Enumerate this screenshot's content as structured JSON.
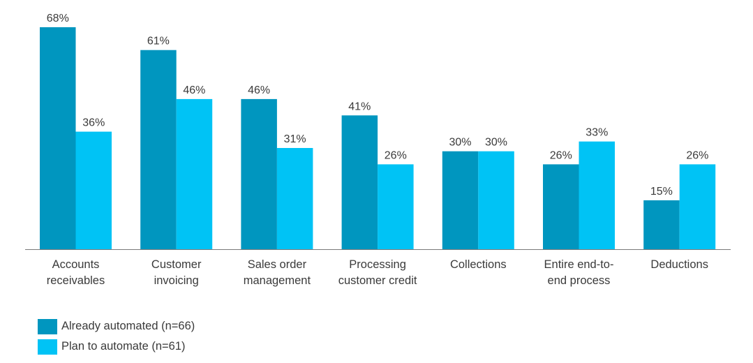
{
  "chart_data": {
    "type": "bar",
    "title": "",
    "xlabel": "",
    "ylabel": "",
    "ylim": [
      0,
      68
    ],
    "grid": false,
    "categories": [
      [
        "Accounts",
        "receivables"
      ],
      [
        "Customer",
        "invoicing"
      ],
      [
        "Sales order",
        "management"
      ],
      [
        "Processing",
        "customer credit"
      ],
      [
        "Collections"
      ],
      [
        "Entire end-to-",
        "end process"
      ],
      [
        "Deductions"
      ]
    ],
    "series": [
      {
        "name": "Already automated (n=66)",
        "color": "#0096bf",
        "values": [
          68,
          61,
          46,
          41,
          30,
          26,
          15
        ],
        "labels": [
          "68%",
          "61%",
          "46%",
          "41%",
          "30%",
          "26%",
          "15%"
        ]
      },
      {
        "name": "Plan to automate (n=61)",
        "color": "#00c3f5",
        "values": [
          36,
          46,
          31,
          26,
          30,
          33,
          26
        ],
        "labels": [
          "36%",
          "46%",
          "31%",
          "26%",
          "30%",
          "33%",
          "26%"
        ]
      }
    ],
    "legend_position": "bottom-left"
  }
}
